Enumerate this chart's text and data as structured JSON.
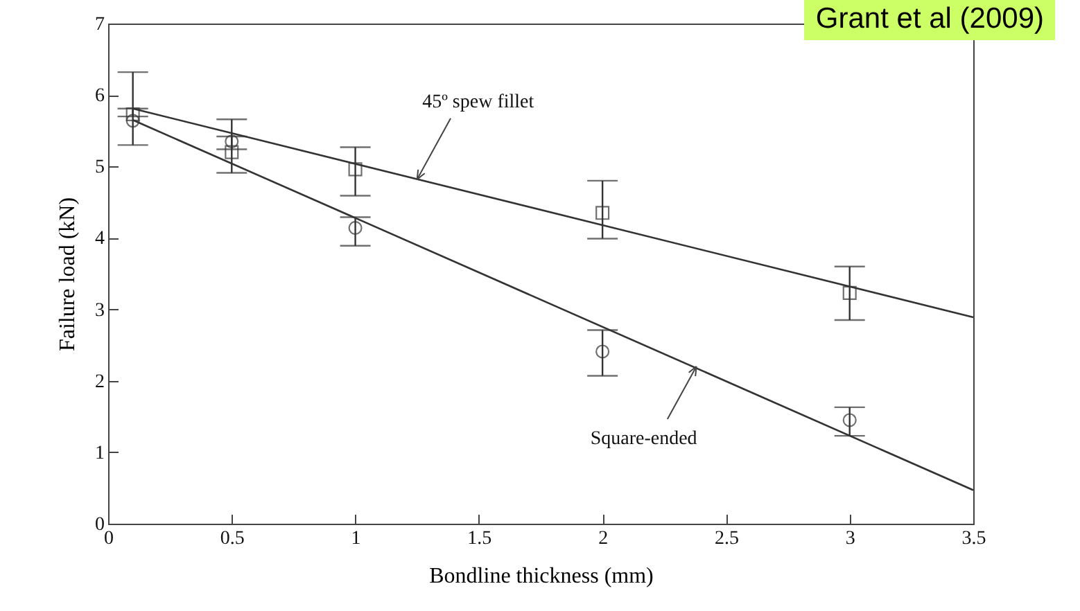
{
  "chart_data": {
    "type": "scatter",
    "xlabel": "Bondline thickness (mm)",
    "ylabel": "Failure load (kN)",
    "xlim": [
      0,
      3.5
    ],
    "xticks": [
      0,
      0.5,
      1,
      1.5,
      2,
      2.5,
      3,
      3.5
    ],
    "ylim": [
      0,
      7
    ],
    "yticks": [
      0,
      1,
      2,
      3,
      4,
      5,
      6,
      7
    ],
    "grid": false,
    "series": [
      {
        "marker": "square",
        "color": "#333333",
        "x": [
          0.1,
          0.5,
          1,
          2,
          3
        ],
        "values": [
          5.73,
          5.2,
          4.96,
          4.35,
          3.23
        ],
        "errors": [
          [
            5.7,
            5.81
          ],
          [
            4.91,
            5.42
          ],
          [
            4.59,
            5.27
          ],
          [
            3.99,
            4.8
          ],
          [
            2.85,
            3.6
          ]
        ]
      },
      {
        "marker": "circle",
        "color": "#333333",
        "x": [
          0.1,
          0.5,
          1,
          2,
          3
        ],
        "values": [
          5.64,
          5.35,
          4.14,
          2.41,
          1.45
        ],
        "errors": [
          [
            5.3,
            6.32
          ],
          [
            5.24,
            5.66
          ],
          [
            3.89,
            4.29
          ],
          [
            2.07,
            2.71
          ],
          [
            1.23,
            1.63
          ]
        ]
      },
      {
        "type": "line",
        "color": "#333333",
        "x": [
          0.1,
          3.5
        ],
        "values": [
          5.81,
          2.89
        ]
      },
      {
        "type": "line",
        "color": "#333333",
        "x": [
          0.1,
          3.5
        ],
        "values": [
          5.65,
          0.47
        ]
      }
    ],
    "annotations": [
      {
        "text": "45º spew fillet",
        "x": 1.25,
        "y": 4.82
      },
      {
        "text": "Square-ended",
        "x": 2.38,
        "y": 2.2
      },
      "Grant et al (2009)"
    ]
  }
}
